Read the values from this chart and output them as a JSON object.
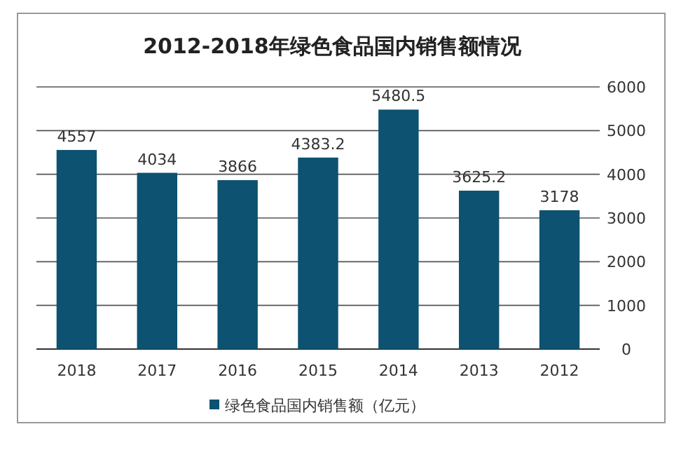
{
  "chart_data": {
    "type": "bar",
    "title": "2012-2018年绿色食品国内销售额情况",
    "categories": [
      "2018",
      "2017",
      "2016",
      "2015",
      "2014",
      "2013",
      "2012"
    ],
    "series": [
      {
        "name": "绿色食品国内销售额（亿元）",
        "color": "#0d5270",
        "values": [
          4557,
          4034,
          3866,
          4383.2,
          5480.5,
          3625.2,
          3178
        ]
      }
    ],
    "ylim": [
      0,
      6000
    ],
    "yticks": [
      0,
      1000,
      2000,
      3000,
      4000,
      5000,
      6000
    ],
    "grid": "y",
    "legend": "bottom",
    "data_labels": true
  }
}
